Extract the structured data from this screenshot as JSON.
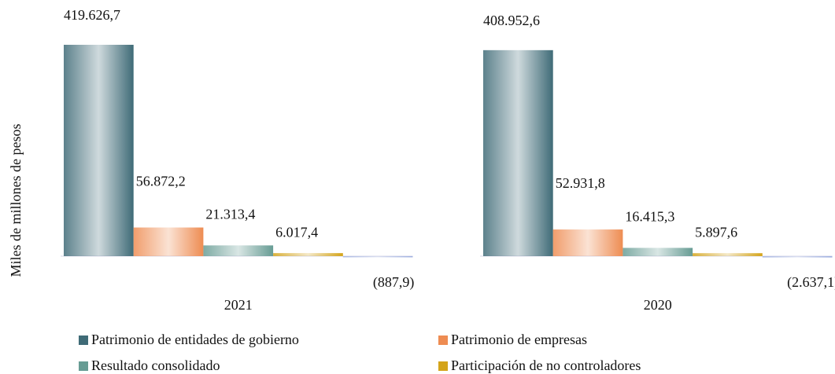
{
  "chart_data": {
    "type": "bar",
    "y_label": "Miles de millones de pesos",
    "categories": [
      "2021",
      "2020"
    ],
    "series": [
      {
        "name": "Patrimonio de entidades de gobierno",
        "color": "#3f6b77",
        "values": [
          419626.7,
          408952.6
        ],
        "value_labels": [
          "419.626,7",
          "408.952,6"
        ]
      },
      {
        "name": "Patrimonio de empresas",
        "color": "#ee8c52",
        "values": [
          56872.2,
          52931.8
        ],
        "value_labels": [
          "56.872,2",
          "52.931,8"
        ]
      },
      {
        "name": "Resultado consolidado",
        "color": "#679c94",
        "values": [
          21313.4,
          16415.3
        ],
        "value_labels": [
          "21.313,4",
          "16.415,3"
        ]
      },
      {
        "name": "Participación de no controladores",
        "color": "#d4a41a",
        "values": [
          6017.4,
          5897.6
        ],
        "value_labels": [
          "6.017,4",
          "5.897,6"
        ]
      },
      {
        "color": "#9fb0e0",
        "values": [
          -887.9,
          -2637.1
        ],
        "value_labels": [
          "(887,9)",
          "(2.637,1)"
        ]
      }
    ]
  }
}
